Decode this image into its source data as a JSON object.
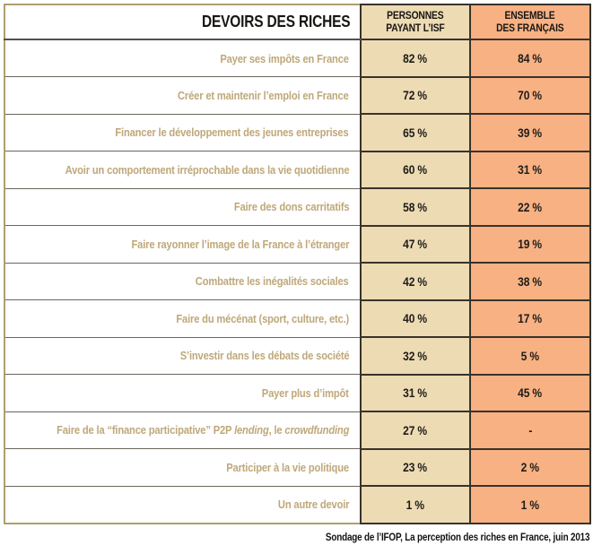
{
  "colors": {
    "beige_column": "#EDDBB3",
    "orange_column": "#F8B183",
    "label_text": "#BFA87A",
    "value_text": "#1E1C19",
    "grid_dark": "#38332B",
    "outer_border": "#ACA06F"
  },
  "table": {
    "header": {
      "title": "DEVOIRS DES RICHES",
      "col1_line1": "PERSONNES",
      "col1_line2": "PAYANT L’ISF",
      "col2_line1": "ENSEMBLE",
      "col2_line2": "DES FRANÇAIS"
    },
    "rows": [
      {
        "label": "Payer ses impôts en France",
        "isf": "82 %",
        "ensemble": "84 %"
      },
      {
        "label": "Créer et maintenir l’emploi en France",
        "isf": "72 %",
        "ensemble": "70 %"
      },
      {
        "label": "Financer le développement des jeunes entreprises",
        "isf": "65 %",
        "ensemble": "39 %"
      },
      {
        "label": "Avoir un comportement irréprochable dans la vie quotidienne",
        "isf": "60 %",
        "ensemble": "31 %"
      },
      {
        "label": "Faire des dons carritatifs",
        "isf": "58 %",
        "ensemble": "22 %"
      },
      {
        "label": "Faire rayonner l’image de la France à l’étranger",
        "isf": "47 %",
        "ensemble": "19 %"
      },
      {
        "label": "Combattre les inégalités sociales",
        "isf": "42 %",
        "ensemble": "38 %"
      },
      {
        "label": "Faire du mécénat (sport, culture, etc.)",
        "isf": "40 %",
        "ensemble": "17 %"
      },
      {
        "label": "S’investir dans les débats de société",
        "isf": "32 %",
        "ensemble": "5 %"
      },
      {
        "label": "Payer plus d’impôt",
        "isf": "31 %",
        "ensemble": "45 %"
      },
      {
        "label_segments": [
          {
            "text": "Faire de la “finance participative” P2P "
          },
          {
            "text": "lending",
            "italic": true
          },
          {
            "text": ", le "
          },
          {
            "text": "crowdfunding",
            "italic": true
          }
        ],
        "isf": "27 %",
        "ensemble": "-"
      },
      {
        "label": "Participer à la vie politique",
        "isf": "23 %",
        "ensemble": "2 %"
      },
      {
        "label": "Un autre devoir",
        "isf": "1 %",
        "ensemble": "1 %"
      }
    ]
  },
  "footer": {
    "source": "Sondage de l’IFOP, La perception des riches en France, juin 2013"
  },
  "chart_data": {
    "type": "table",
    "title": "DEVOIRS DES RICHES",
    "columns": [
      "DEVOIRS DES RICHES",
      "PERSONNES PAYANT L’ISF",
      "ENSEMBLE DES FRANÇAIS"
    ],
    "categories": [
      "Payer ses impôts en France",
      "Créer et maintenir l’emploi en France",
      "Financer le développement des jeunes entreprises",
      "Avoir un comportement irréprochable dans la vie quotidienne",
      "Faire des dons carritatifs",
      "Faire rayonner l’image de la France à l’étranger",
      "Combattre les inégalités sociales",
      "Faire du mécénat (sport, culture, etc.)",
      "S’investir dans les débats de société",
      "Payer plus d’impôt",
      "Faire de la “finance participative” P2P lending, le crowdfunding",
      "Participer à la vie politique",
      "Un autre devoir"
    ],
    "series": [
      {
        "name": "PERSONNES PAYANT L’ISF",
        "values": [
          82,
          72,
          65,
          60,
          58,
          47,
          42,
          40,
          32,
          31,
          27,
          23,
          1
        ]
      },
      {
        "name": "ENSEMBLE DES FRANÇAIS",
        "values": [
          84,
          70,
          39,
          31,
          22,
          19,
          38,
          17,
          5,
          45,
          null,
          2,
          1
        ]
      }
    ],
    "unit": "%",
    "source": "Sondage de l’IFOP, La perception des riches en France, juin 2013"
  }
}
